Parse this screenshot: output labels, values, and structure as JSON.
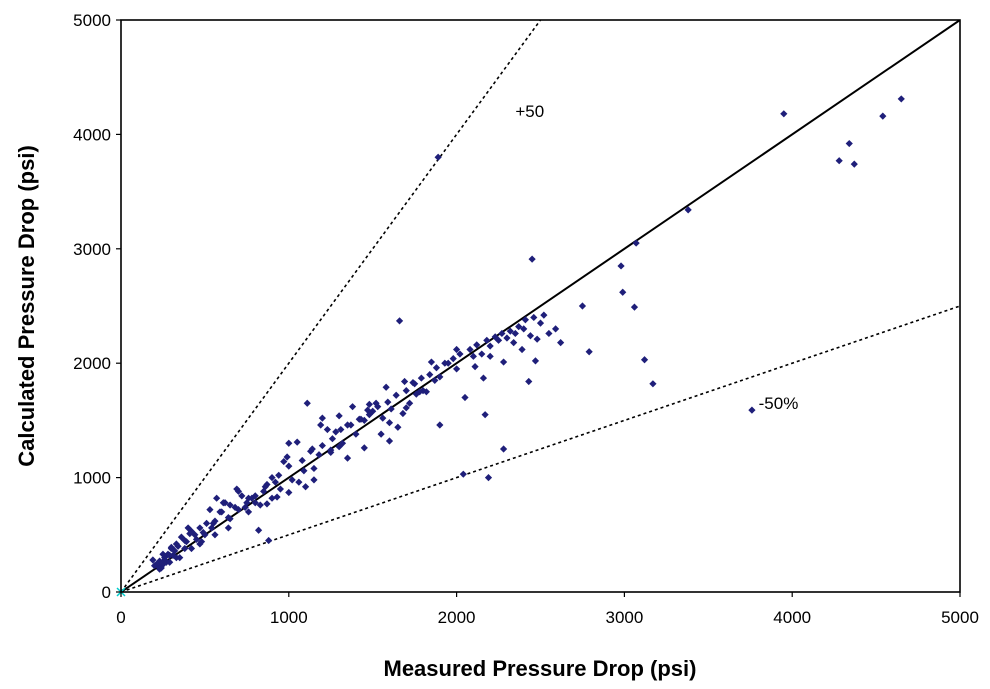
{
  "chart_data": {
    "type": "scatter",
    "title": "",
    "xlabel": "Measured Pressure Drop (psi)",
    "ylabel": "Calculated Pressure Drop (psi)",
    "xlim": [
      0,
      5000
    ],
    "ylim": [
      0,
      5000
    ],
    "x_ticks": [
      "0",
      "1000",
      "2000",
      "3000",
      "4000",
      "5000"
    ],
    "y_ticks": [
      "0",
      "1000",
      "2000",
      "3000",
      "4000",
      "5000"
    ],
    "grid": false,
    "legend": "none",
    "marker_color": "#1f1f7a",
    "origin_marker_color": "#00cccc",
    "annotations": [
      {
        "text": "+50",
        "x": 2350,
        "y": 4150
      },
      {
        "text": "-50%",
        "x": 3800,
        "y": 1600
      }
    ],
    "reference_lines": [
      {
        "label": "1:1",
        "slope": 1,
        "style": "solid"
      },
      {
        "label": "+50",
        "slope": 2,
        "style": "dashed"
      },
      {
        "label": "-50%",
        "slope": 0.5,
        "style": "dashed"
      }
    ],
    "series": [
      {
        "x": [
          1890,
          2450,
          3070,
          3380,
          3950,
          4280,
          4340,
          4370,
          4540,
          4650,
          2980,
          3060,
          3120,
          3170,
          3760,
          2990,
          2750,
          2790,
          2590,
          2470,
          2430,
          2280,
          2190,
          2170,
          2040,
          2050,
          1900,
          1660,
          1690,
          1580,
          1610,
          1520,
          1450,
          1550,
          1380,
          1300,
          1200,
          1190,
          1110,
          1050,
          1000,
          970,
          920,
          880,
          820,
          800,
          760,
          700,
          690,
          650,
          620,
          600,
          570,
          540,
          500,
          480,
          450,
          420,
          400,
          380,
          350,
          330,
          300,
          280,
          260,
          250,
          240,
          230,
          220,
          210,
          200,
          190,
          1820,
          1870,
          1950,
          2000,
          2100,
          2150,
          2200,
          2250,
          2300,
          2350,
          2400,
          2500,
          2520,
          1740,
          1720,
          1760,
          1800,
          1680,
          1650,
          1600,
          1560,
          1500,
          1470,
          1420,
          1400,
          1350,
          1320,
          1280,
          1250,
          1230,
          1180,
          1150,
          1130,
          1090,
          1060,
          1020,
          990,
          950,
          900,
          870,
          850,
          830,
          780,
          740,
          720,
          680,
          640,
          610,
          590,
          560,
          530,
          510,
          490,
          470,
          440,
          410,
          390,
          360,
          340,
          320,
          310,
          290,
          270,
          260,
          700,
          750,
          800,
          860,
          900,
          940,
          1000,
          1080,
          1140,
          1200,
          1260,
          1310,
          1370,
          1430,
          1480,
          1530,
          1590,
          1640,
          1700,
          1750,
          1790,
          1840,
          1880,
          1930,
          1980,
          2020,
          2080,
          2120,
          2180,
          2230,
          2270,
          2320,
          2370,
          2410,
          2460,
          2000,
          1850,
          1700,
          1300,
          1100,
          930,
          650,
          550,
          380,
          300,
          250,
          2160,
          2280,
          1250,
          1480,
          2110,
          1900,
          1780,
          2200,
          2340,
          2480,
          2550,
          2620,
          2390,
          2440,
          1600,
          1450,
          1350,
          1150,
          1000,
          870,
          760,
          640,
          560,
          470,
          420,
          330,
          290,
          230
        ],
        "y": [
          3800,
          2910,
          3050,
          3340,
          4180,
          3770,
          3920,
          3740,
          4160,
          4310,
          2850,
          2490,
          2030,
          1820,
          1590,
          2620,
          2500,
          2100,
          2300,
          2020,
          1840,
          1250,
          1000,
          1550,
          1030,
          1700,
          1460,
          2370,
          1840,
          1790,
          1600,
          1650,
          1500,
          1380,
          1620,
          1540,
          1520,
          1460,
          1650,
          1310,
          1300,
          1140,
          960,
          450,
          540,
          780,
          820,
          720,
          900,
          640,
          780,
          700,
          820,
          560,
          500,
          440,
          460,
          530,
          560,
          380,
          300,
          420,
          390,
          330,
          280,
          240,
          210,
          270,
          230,
          240,
          230,
          280,
          1750,
          1850,
          2000,
          1950,
          2060,
          2080,
          2150,
          2200,
          2220,
          2260,
          2300,
          2350,
          2420,
          1830,
          1650,
          1730,
          1760,
          1560,
          1440,
          1480,
          1520,
          1580,
          1590,
          1510,
          1380,
          1460,
          1300,
          1400,
          1240,
          1420,
          1200,
          1080,
          1230,
          1060,
          960,
          980,
          1180,
          900,
          820,
          940,
          880,
          760,
          820,
          740,
          840,
          740,
          650,
          780,
          700,
          620,
          720,
          600,
          520,
          560,
          500,
          510,
          440,
          480,
          400,
          360,
          320,
          320,
          260,
          300,
          880,
          780,
          840,
          920,
          1000,
          1020,
          1100,
          1150,
          1250,
          1280,
          1340,
          1420,
          1460,
          1510,
          1550,
          1620,
          1660,
          1720,
          1760,
          1820,
          1870,
          1900,
          1960,
          2000,
          2040,
          2080,
          2120,
          2160,
          2200,
          2230,
          2260,
          2280,
          2320,
          2380,
          2400,
          2120,
          2010,
          1610,
          1270,
          920,
          830,
          760,
          600,
          450,
          380,
          330,
          1870,
          2010,
          1220,
          1640,
          1970,
          1880,
          1750,
          2060,
          2180,
          2210,
          2260,
          2180,
          2120,
          2240,
          1320,
          1260,
          1170,
          980,
          870,
          770,
          700,
          560,
          500,
          420,
          380,
          300,
          260,
          200
        ]
      }
    ]
  }
}
